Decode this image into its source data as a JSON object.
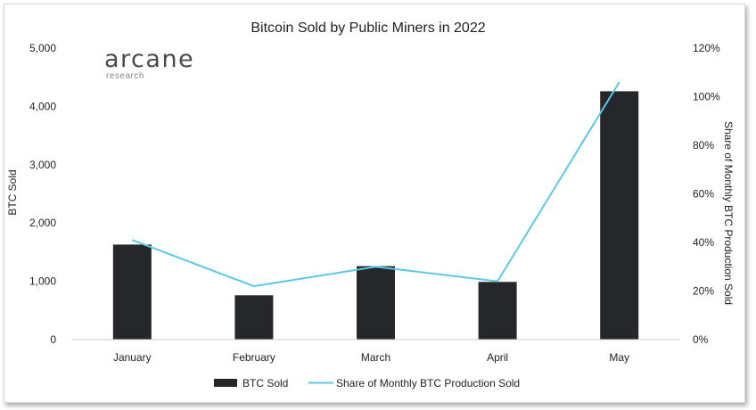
{
  "logo": {
    "word": "arcane",
    "sub": "research"
  },
  "chart_data": {
    "type": "bar",
    "title": "Bitcoin Sold by Public Miners in 2022",
    "categories": [
      "January",
      "February",
      "March",
      "April",
      "May"
    ],
    "series": [
      {
        "name": "BTC Sold",
        "type": "bar",
        "axis": "left",
        "color": "#25272b",
        "values": [
          1630,
          760,
          1260,
          990,
          4260
        ]
      },
      {
        "name": "Share of Monthly BTC Production Sold",
        "type": "line",
        "axis": "right",
        "color": "#5bc8e8",
        "values": [
          0.41,
          0.22,
          0.3,
          0.24,
          1.06
        ]
      }
    ],
    "ylabel": "BTC Sold",
    "y2label": "Share of Monthly BTC Production Sold",
    "ylim": [
      0,
      5000
    ],
    "y2lim": [
      0,
      1.2
    ],
    "yticks": [
      "0",
      "1,000",
      "2,000",
      "3,000",
      "4,000",
      "5,000"
    ],
    "y2ticks": [
      "0%",
      "20%",
      "40%",
      "60%",
      "80%",
      "100%",
      "120%"
    ],
    "grid": false,
    "legend": "bottom"
  }
}
